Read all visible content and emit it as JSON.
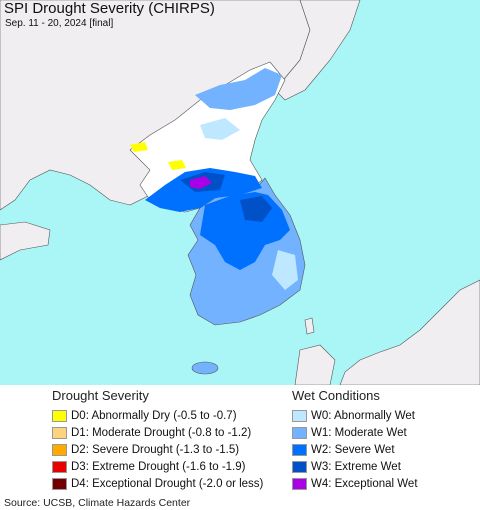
{
  "header": {
    "title": "SPI Drought Severity (CHIRPS)",
    "subtitle": "Sep. 11 - 20, 2024 [final]"
  },
  "colors": {
    "sea": "#aaf5f5",
    "foreign_land": "#f0eef0",
    "neutral_land": "#ffffff"
  },
  "legend": {
    "drought_title": "Drought Severity",
    "wet_title": "Wet Conditions",
    "drought": [
      {
        "label": "D0: Abnormally Dry (-0.5 to -0.7)",
        "color": "#ffff00"
      },
      {
        "label": "D1: Moderate Drought (-0.8 to -1.2)",
        "color": "#fcd37f"
      },
      {
        "label": "D2: Severe Drought (-1.3 to -1.5)",
        "color": "#ffaa00"
      },
      {
        "label": "D3: Extreme Drought (-1.6 to -1.9)",
        "color": "#e60000"
      },
      {
        "label": "D4: Exceptional Drought (-2.0 or less)",
        "color": "#730000"
      }
    ],
    "wet": [
      {
        "label": "W0: Abnormally Wet",
        "color": "#bee8ff"
      },
      {
        "label": "W1: Moderate Wet",
        "color": "#73b2ff"
      },
      {
        "label": "W2: Severe Wet",
        "color": "#0070ff"
      },
      {
        "label": "W3: Extreme Wet",
        "color": "#0050c8"
      },
      {
        "label": "W4: Exceptional Wet",
        "color": "#a900e6"
      }
    ]
  },
  "footer": {
    "source": "Source: UCSB, Climate Hazards Center"
  }
}
